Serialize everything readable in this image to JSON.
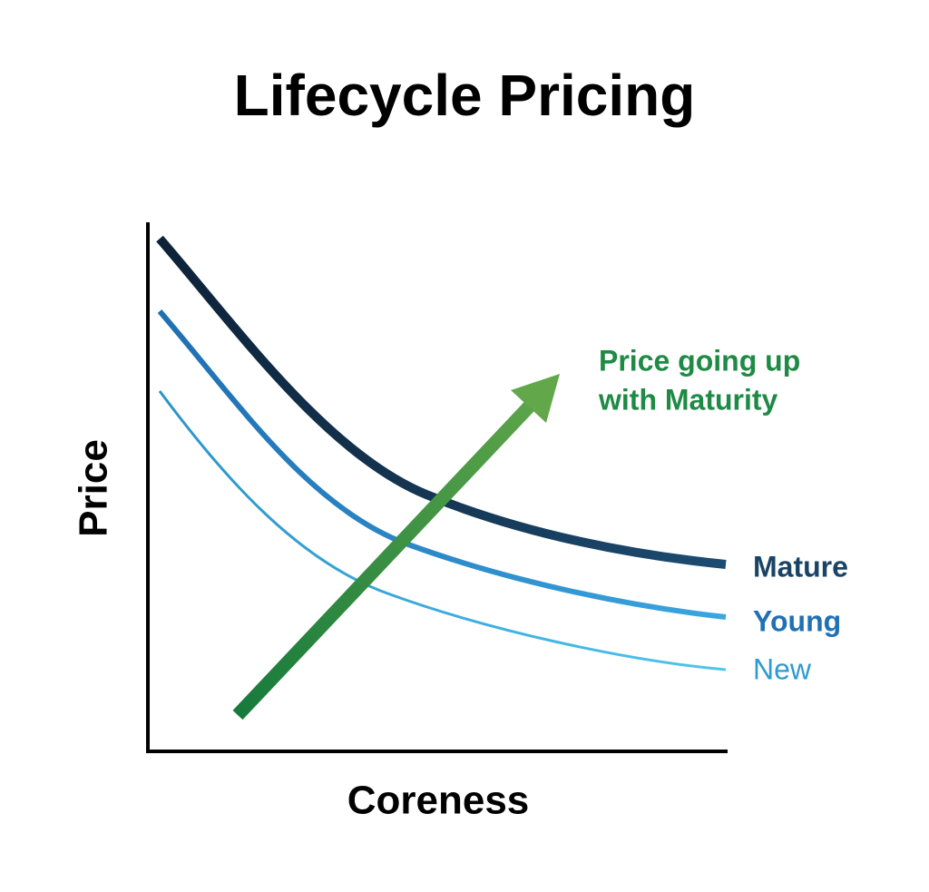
{
  "header": {
    "title": "Lifecycle Pricing"
  },
  "axes": {
    "x_label": "Coreness",
    "y_label": "Price"
  },
  "annotation": {
    "lines": [
      "Price going up",
      "with Maturity"
    ]
  },
  "curves": [
    {
      "label": "Mature"
    },
    {
      "label": "Young"
    },
    {
      "label": "New"
    }
  ]
}
